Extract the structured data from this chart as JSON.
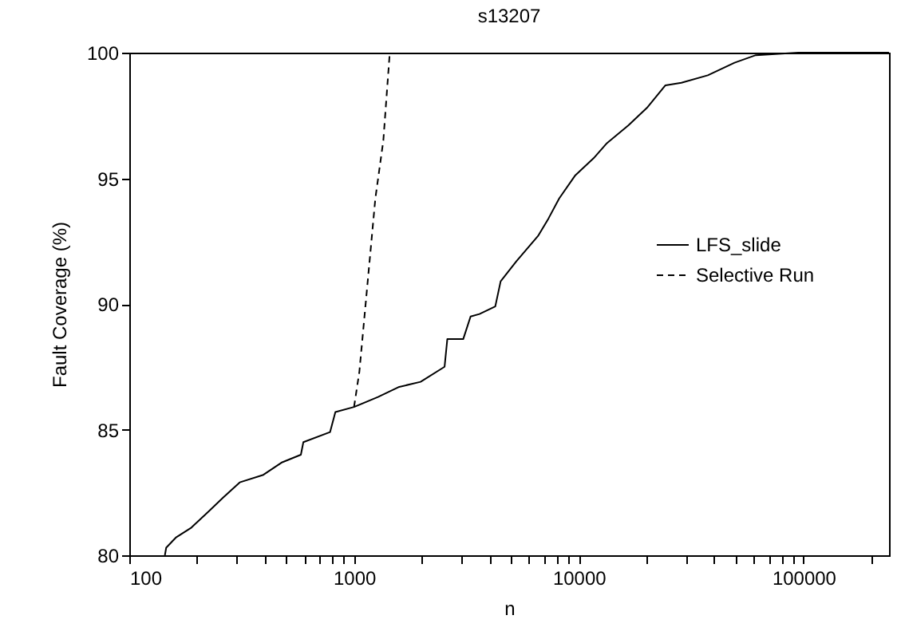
{
  "chart_data": {
    "type": "line",
    "title": "s13207",
    "xlabel": "n",
    "ylabel": "Fault Coverage (%)",
    "log": "x",
    "grid": false,
    "legend": "right",
    "marker": "none",
    "xlim": [
      100,
      240000
    ],
    "ylim": [
      80,
      100
    ],
    "yticks": [
      80,
      85,
      90,
      95,
      100
    ],
    "xticks": [
      100,
      {
        "value": 200,
        "label": null
      },
      {
        "value": 300,
        "label": null
      },
      {
        "value": 400,
        "label": null
      },
      {
        "value": 500,
        "label": null
      },
      {
        "value": 600,
        "label": null
      },
      {
        "value": 700,
        "label": null
      },
      {
        "value": 800,
        "label": null
      },
      {
        "value": 900,
        "label": null
      },
      1000,
      {
        "value": 2000,
        "label": null
      },
      {
        "value": 3000,
        "label": null
      },
      {
        "value": 4000,
        "label": null
      },
      {
        "value": 5000,
        "label": null
      },
      {
        "value": 6000,
        "label": null
      },
      {
        "value": 7000,
        "label": null
      },
      {
        "value": 8000,
        "label": null
      },
      {
        "value": 9000,
        "label": null
      },
      10000,
      {
        "value": 20000,
        "label": null
      },
      {
        "value": 30000,
        "label": null
      },
      {
        "value": 40000,
        "label": null
      },
      {
        "value": 50000,
        "label": null
      },
      {
        "value": 60000,
        "label": null
      },
      {
        "value": 70000,
        "label": null
      },
      {
        "value": 80000,
        "label": null
      },
      {
        "value": 90000,
        "label": null
      },
      100000,
      {
        "value": 200000,
        "label": null
      }
    ],
    "series": [
      {
        "name": "LFS_slide",
        "color": "#000000",
        "line_style": "solid",
        "x": [
          144,
          146,
          161,
          189,
          229,
          262,
          310,
          395,
          479,
          580,
          595,
          782,
          826,
          1000,
          1278,
          1589,
          1977,
          2528,
          2600,
          3060,
          3300,
          3614,
          4250,
          4490,
          5280,
          6580,
          7330,
          8180,
          9610,
          11640,
          13340,
          16600,
          20080,
          24290,
          28600,
          37500,
          49300,
          61300,
          94700,
          240000
        ],
        "values": [
          80,
          80.3,
          80.7,
          81.1,
          81.8,
          82.3,
          82.9,
          83.2,
          83.7,
          84.0,
          84.5,
          84.9,
          85.7,
          85.9,
          86.3,
          86.7,
          86.9,
          87.5,
          88.6,
          88.6,
          89.5,
          89.6,
          89.9,
          90.9,
          91.7,
          92.7,
          93.4,
          94.2,
          95.1,
          95.8,
          96.4,
          97.1,
          97.8,
          98.7,
          98.8,
          99.1,
          99.6,
          99.9,
          100,
          100
        ]
      },
      {
        "name": "Selective Run",
        "color": "#000000",
        "line_style": "dashed",
        "x": [
          1000,
          1056,
          1178,
          1244,
          1350,
          1442
        ],
        "values": [
          85.9,
          87.3,
          91.9,
          94.2,
          96.5,
          100
        ]
      }
    ]
  }
}
